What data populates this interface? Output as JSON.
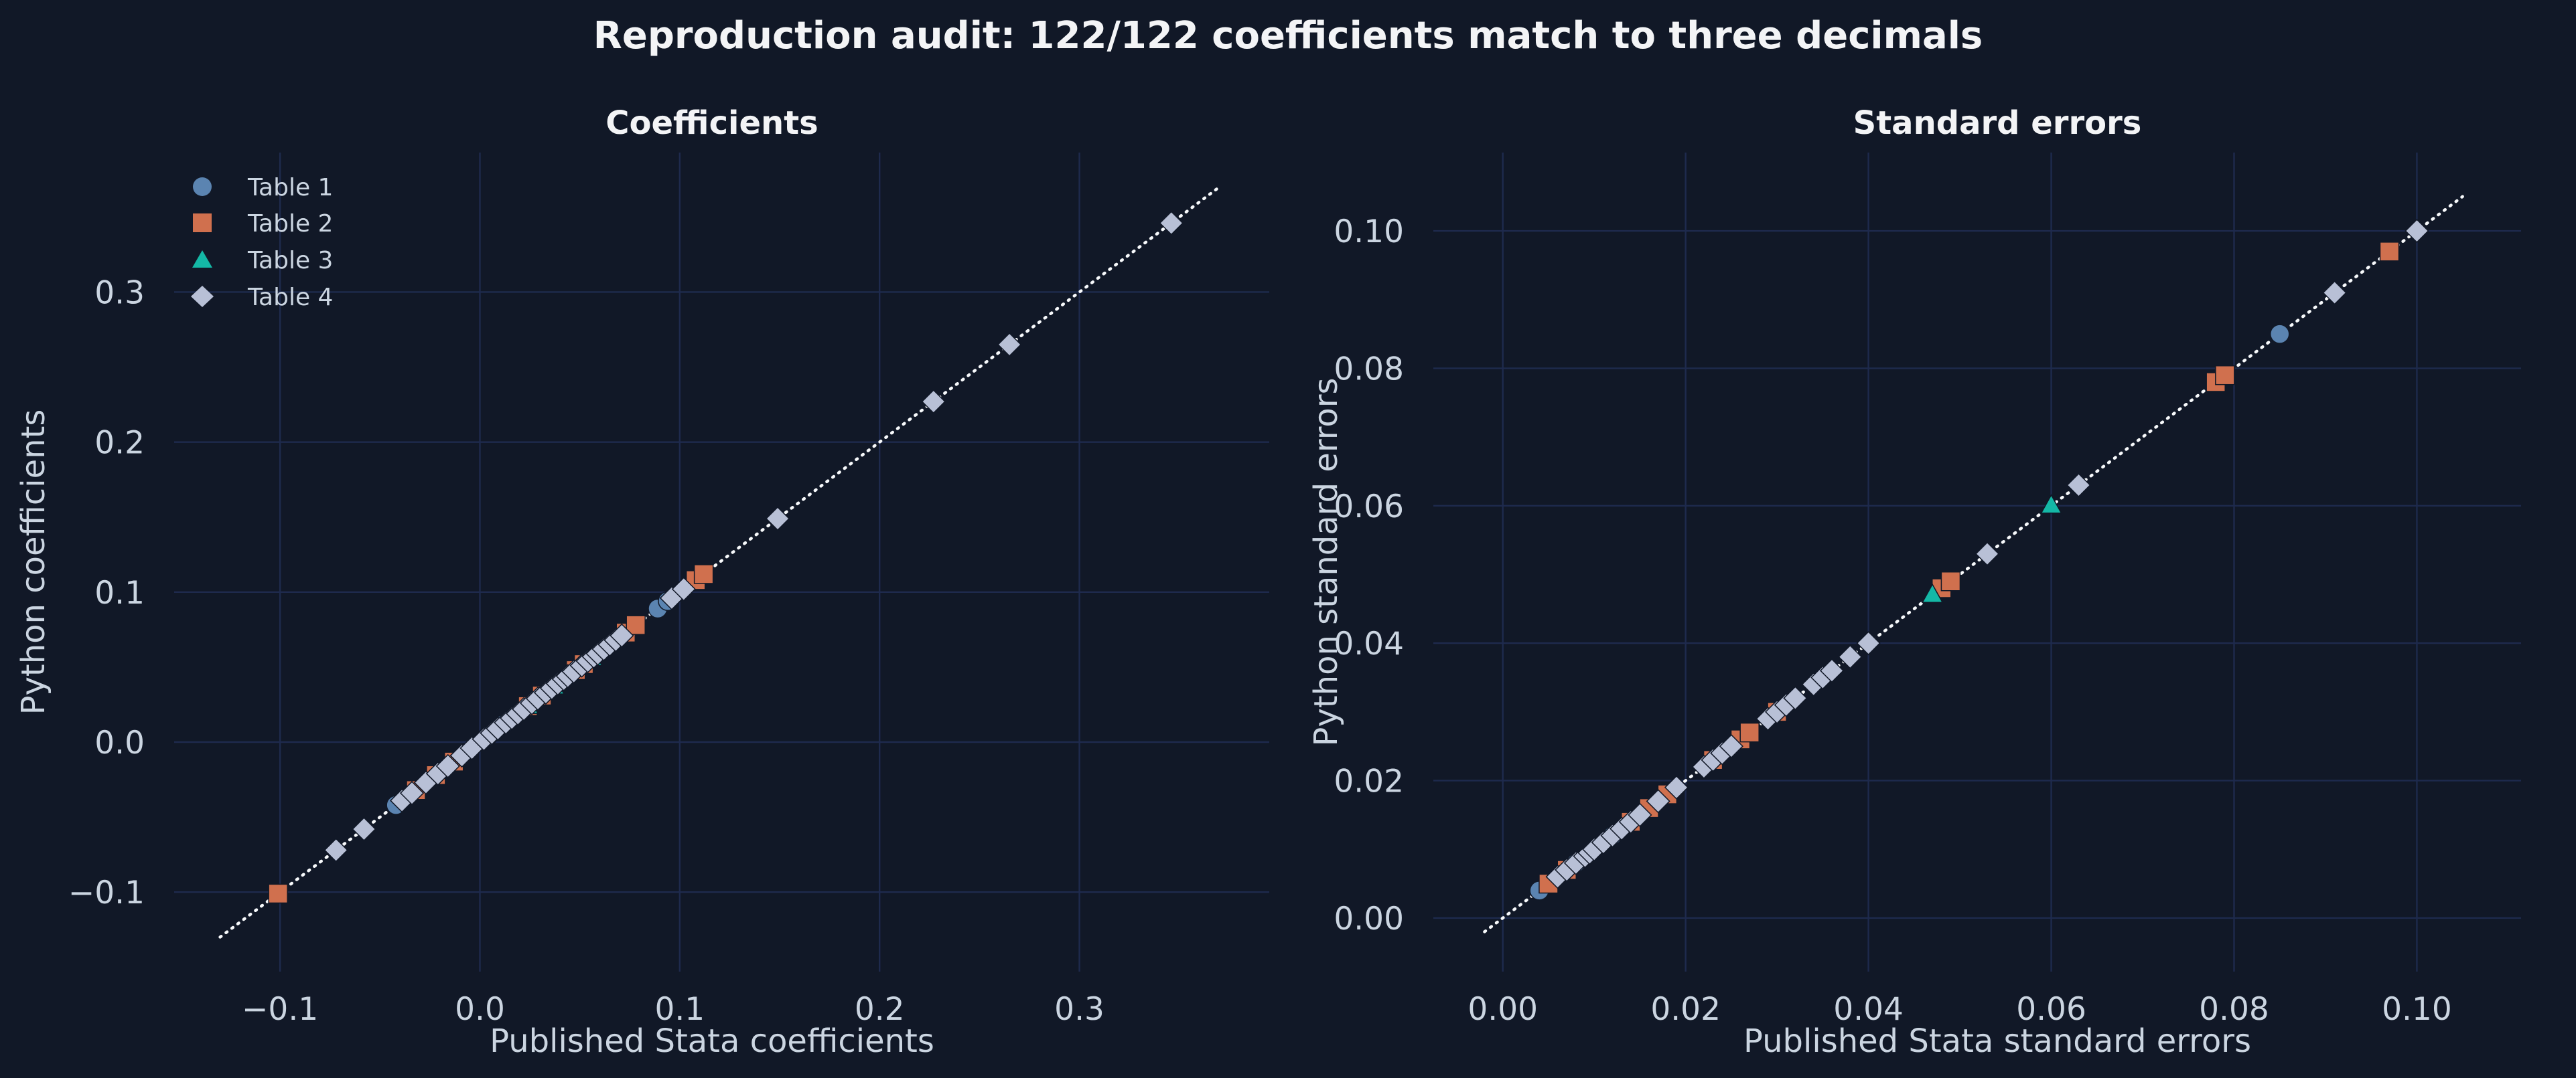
{
  "figure": {
    "suptitle": "Reproduction audit: 122/122 coefficients match to three decimals",
    "background": "#111827"
  },
  "colors": {
    "Table 1": "#5b84b1",
    "Table 2": "#d0704e",
    "Table 3": "#14b8a6",
    "Table 4": "#b8c0d6",
    "grid": "#1e2a4d",
    "reference_line": "#f8fafc"
  },
  "chart_data": [
    {
      "type": "scatter",
      "title": "Coefficients",
      "xlabel": "Published Stata coefficients",
      "ylabel": "Python coefficients",
      "xlim": [
        -0.153,
        0.395
      ],
      "ylim": [
        -0.153,
        0.393
      ],
      "xticks": [
        -0.1,
        0.0,
        0.1,
        0.2,
        0.3
      ],
      "yticks": [
        -0.1,
        0.0,
        0.1,
        0.2,
        0.3
      ],
      "tick_labels_x": [
        "−0.1",
        "0.0",
        "0.1",
        "0.2",
        "0.3"
      ],
      "tick_labels_y": [
        "−0.1",
        "0.0",
        "0.1",
        "0.2",
        "0.3"
      ],
      "reference_line": [
        -0.13,
        0.37
      ],
      "grid": true,
      "legend": "top-left",
      "series": [
        {
          "name": "Table 1",
          "marker": "circle",
          "values": [
            -0.042,
            0.004,
            0.012,
            0.021,
            0.028,
            0.046,
            0.063,
            0.089,
            0.094
          ]
        },
        {
          "name": "Table 2",
          "marker": "square",
          "values": [
            -0.101,
            -0.032,
            -0.022,
            -0.013,
            0.024,
            0.031,
            0.048,
            0.052,
            0.073,
            0.078,
            0.108,
            0.112
          ]
        },
        {
          "name": "Table 3",
          "marker": "triangle",
          "values": [
            0.024,
            0.037,
            0.056
          ]
        },
        {
          "name": "Table 4",
          "marker": "diamond",
          "values": [
            -0.072,
            -0.058,
            -0.039,
            -0.034,
            -0.027,
            -0.021,
            -0.016,
            -0.009,
            -0.004,
            0.002,
            0.006,
            0.009,
            0.013,
            0.016,
            0.019,
            0.022,
            0.026,
            0.029,
            0.033,
            0.036,
            0.039,
            0.042,
            0.044,
            0.047,
            0.051,
            0.054,
            0.057,
            0.059,
            0.062,
            0.065,
            0.068,
            0.071,
            0.096,
            0.102,
            0.149,
            0.227,
            0.265,
            0.346
          ]
        }
      ]
    },
    {
      "type": "scatter",
      "title": "Standard errors",
      "xlabel": "Published Stata standard errors",
      "ylabel": "Python standard errors",
      "xlim": [
        -0.0076,
        0.1114
      ],
      "ylim": [
        -0.0078,
        0.1114
      ],
      "xticks": [
        0.0,
        0.02,
        0.04,
        0.06,
        0.08,
        0.1
      ],
      "yticks": [
        0.0,
        0.02,
        0.04,
        0.06,
        0.08,
        0.1
      ],
      "tick_labels_x": [
        "0.00",
        "0.02",
        "0.04",
        "0.06",
        "0.08",
        "0.10"
      ],
      "tick_labels_y": [
        "0.00",
        "0.02",
        "0.04",
        "0.06",
        "0.08",
        "0.10"
      ],
      "reference_line": [
        -0.002,
        0.105
      ],
      "grid": true,
      "legend": "none",
      "series": [
        {
          "name": "Table 1",
          "marker": "circle",
          "values": [
            0.004,
            0.008,
            0.012,
            0.049,
            0.085
          ]
        },
        {
          "name": "Table 2",
          "marker": "square",
          "values": [
            0.005,
            0.007,
            0.014,
            0.016,
            0.018,
            0.023,
            0.026,
            0.027,
            0.03,
            0.048,
            0.049,
            0.078,
            0.079,
            0.097
          ]
        },
        {
          "name": "Table 3",
          "marker": "triangle",
          "values": [
            0.047,
            0.06
          ]
        },
        {
          "name": "Table 4",
          "marker": "diamond",
          "values": [
            0.006,
            0.007,
            0.008,
            0.009,
            0.0095,
            0.01,
            0.011,
            0.012,
            0.013,
            0.014,
            0.015,
            0.017,
            0.019,
            0.022,
            0.023,
            0.024,
            0.025,
            0.029,
            0.03,
            0.031,
            0.032,
            0.034,
            0.035,
            0.036,
            0.038,
            0.04,
            0.053,
            0.063,
            0.091,
            0.1
          ]
        }
      ]
    }
  ]
}
